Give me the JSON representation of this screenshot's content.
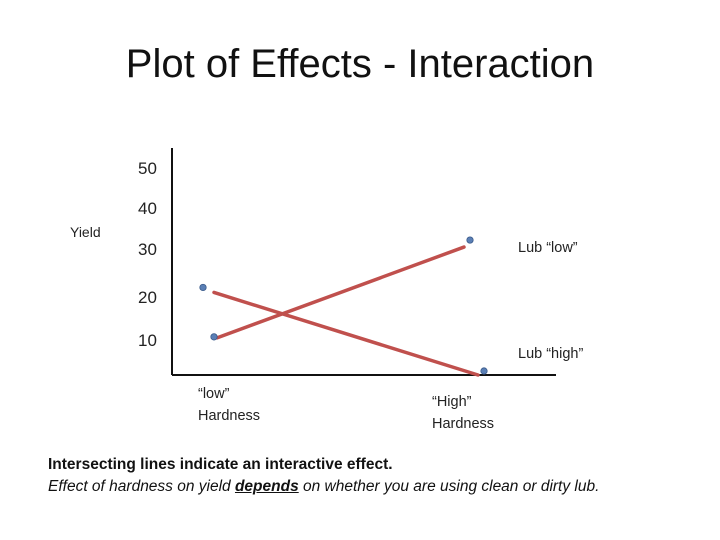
{
  "slide_title": "Plot of Effects - Interaction",
  "chart_data": {
    "type": "line",
    "title": "Plot of Effects - Interaction",
    "ylabel": "Yield",
    "xlabel": "",
    "y_ticks": [
      50,
      40,
      30,
      20,
      10
    ],
    "ylim": [
      0,
      55
    ],
    "categories": [
      [
        "“low”",
        "Hardness"
      ],
      [
        "“High”",
        "Hardness"
      ]
    ],
    "series": [
      {
        "name": "Lub “low”",
        "values": [
          9,
          31
        ],
        "color": "#c0504d"
      },
      {
        "name": "Lub “high”",
        "values": [
          20,
          0
        ],
        "color": "#c0504d"
      }
    ],
    "legend": "right, inline at line ends"
  },
  "caption": {
    "line1": "Intersecting lines indicate an interactive effect.",
    "line2_pre": "Effect of hardness on yield ",
    "line2_em": "depends",
    "line2_post": " on whether you are using clean or dirty lub."
  }
}
